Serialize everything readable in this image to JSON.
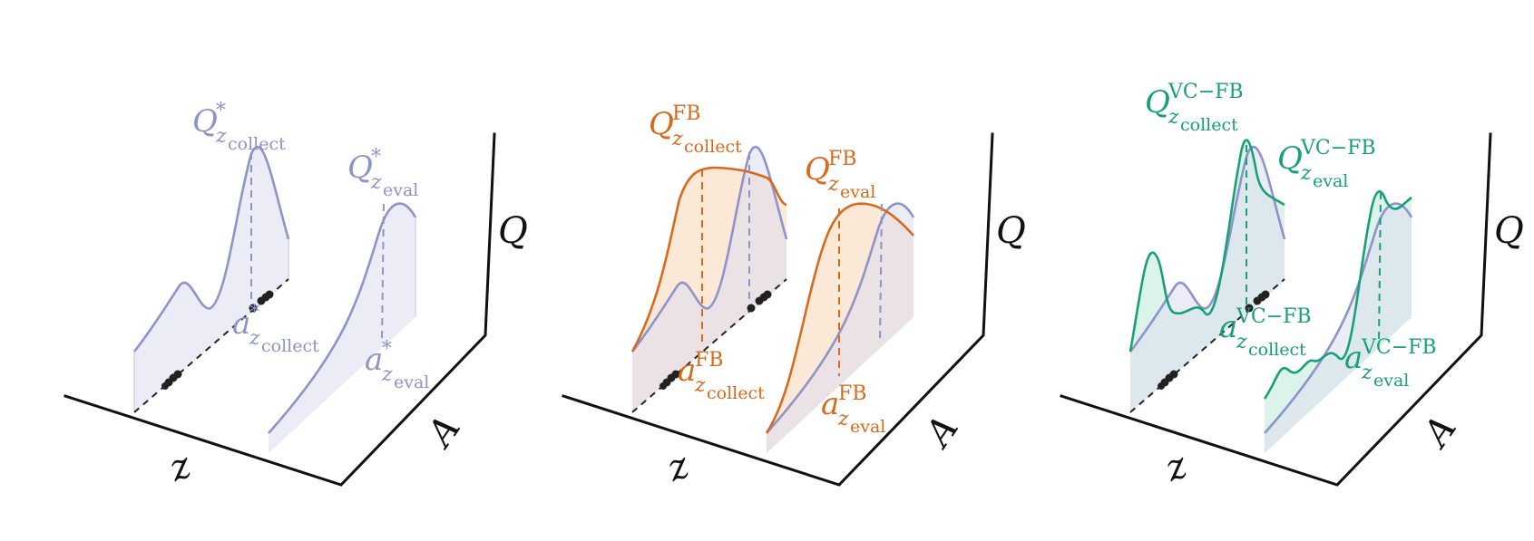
{
  "colors": {
    "optimal": "#8e93c9",
    "optimal_fill": "#dcdcf0",
    "fb": "#d96a1b",
    "fb_fill": "#f9d9bd",
    "vcfb": "#18a078",
    "vcfb_fill": "#cdeee1",
    "axis": "#111111"
  },
  "axes": {
    "z": "z",
    "a": "A",
    "q": "Q"
  },
  "panels": [
    {
      "labels": {
        "q_collect": {
          "main": "Q",
          "sup": "*",
          "sub": "z",
          "subsub": "collect"
        },
        "q_eval": {
          "main": "Q",
          "sup": "*",
          "sub": "z",
          "subsub": "eval"
        },
        "a_collect": {
          "main": "a",
          "sup": "*",
          "sub": "z",
          "subsub": "collect"
        },
        "a_eval": {
          "main": "a",
          "sup": "*",
          "sub": "z",
          "subsub": "eval"
        }
      }
    },
    {
      "labels": {
        "q_collect": {
          "main": "Q",
          "sup": "FB",
          "sub": "z",
          "subsub": "collect"
        },
        "q_eval": {
          "main": "Q",
          "sup": "FB",
          "sub": "z",
          "subsub": "eval"
        },
        "a_collect": {
          "main": "a",
          "sup": "FB",
          "sub": "z",
          "subsub": "collect"
        },
        "a_eval": {
          "main": "a",
          "sup": "FB",
          "sub": "z",
          "subsub": "eval"
        }
      }
    },
    {
      "labels": {
        "q_collect": {
          "main": "Q",
          "sup": "VC−FB",
          "sub": "z",
          "subsub": "collect"
        },
        "q_eval": {
          "main": "Q",
          "sup": "VC−FB",
          "sub": "z",
          "subsub": "eval"
        },
        "a_collect": {
          "main": "a",
          "sup": "VC−FB",
          "sub": "z",
          "subsub": "collect"
        },
        "a_eval": {
          "main": "a",
          "sup": "VC−FB",
          "sub": "z",
          "subsub": "eval"
        }
      }
    }
  ]
}
